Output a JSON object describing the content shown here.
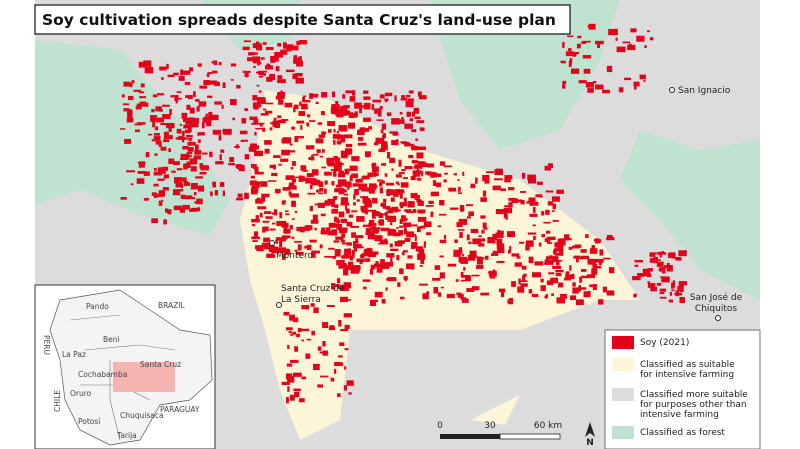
{
  "title": "Soy cultivation spreads despite Santa Cruz's land-use plan",
  "places": [
    {
      "lines": [
        "San Ignacio"
      ]
    },
    {
      "lines": [
        "Montero"
      ]
    },
    {
      "lines": [
        "Santa Cruz de",
        "La Sierra"
      ]
    },
    {
      "lines": [
        "San José de",
        "Chiquitos"
      ]
    }
  ],
  "legend": [
    {
      "lines": [
        "Soy (2021)"
      ],
      "color": "#e2001a"
    },
    {
      "lines": [
        "Classified as suitable",
        "for intensive farming"
      ],
      "color": "#fdf5d8"
    },
    {
      "lines": [
        "Classified more suitable",
        "for purposes other than",
        "intensive farming"
      ],
      "color": "#dcdcdc"
    },
    {
      "lines": [
        "Classified as forest"
      ],
      "color": "#bfe3d0"
    }
  ],
  "scale": {
    "ticks": [
      "0",
      "30",
      "60 km"
    ],
    "north": "N"
  },
  "inset": {
    "labels": [
      "BRAZIL",
      "Pando",
      "Beni",
      "PERU",
      "La Paz",
      "Santa Cruz",
      "Cochabamba",
      "Oruro",
      "CHILE",
      "Potosí",
      "Chuquisaca",
      "PARAGUAY",
      "Tarija"
    ]
  }
}
